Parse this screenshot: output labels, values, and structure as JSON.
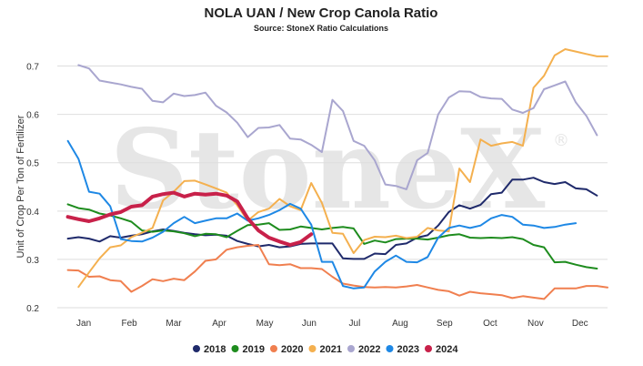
{
  "chart_data": {
    "type": "line",
    "title": "NOLA UAN / New Crop Canola Ratio",
    "subtitle": "Source: StoneX Ratio Calculations",
    "ylabel": "Unit of Crop Per Ton of Fertilizer",
    "xlabel": "",
    "watermark": "StoneX",
    "watermark_mark": "®",
    "ylim": [
      0.2,
      0.75
    ],
    "yticks": [
      0.2,
      0.3,
      0.4,
      0.5,
      0.6,
      0.7
    ],
    "ytick_labels": [
      "0.2",
      "0.3",
      "0.4",
      "0.5",
      "0.6",
      "0.7"
    ],
    "xlim": [
      0,
      52
    ],
    "xticks": [
      {
        "label": "Jan",
        "x": 2.5
      },
      {
        "label": "Feb",
        "x": 6.8
      },
      {
        "label": "Mar",
        "x": 11.0
      },
      {
        "label": "Apr",
        "x": 15.3
      },
      {
        "label": "May",
        "x": 19.6
      },
      {
        "label": "Jun",
        "x": 23.8
      },
      {
        "label": "Jul",
        "x": 28.1
      },
      {
        "label": "Aug",
        "x": 32.4
      },
      {
        "label": "Sep",
        "x": 36.6
      },
      {
        "label": "Oct",
        "x": 40.9
      },
      {
        "label": "Nov",
        "x": 45.2
      },
      {
        "label": "Dec",
        "x": 49.4
      }
    ],
    "grid": "horizontal",
    "legend_position": "bottom",
    "series": [
      {
        "name": "2018",
        "color": "#1f2a6b",
        "width": 2,
        "x": [
          1,
          2,
          3,
          4,
          5,
          6,
          7,
          8,
          9,
          10,
          11,
          12,
          13,
          14,
          15,
          16,
          17,
          18,
          19,
          20,
          21,
          22,
          23,
          24,
          25,
          26,
          27,
          28,
          29,
          30,
          31,
          32,
          33,
          34,
          35,
          36,
          37,
          38,
          39,
          40,
          41,
          42,
          43,
          44,
          45,
          46,
          47,
          48,
          49,
          50,
          51
        ],
        "y": [
          0.343,
          0.346,
          0.343,
          0.337,
          0.348,
          0.345,
          0.349,
          0.352,
          0.358,
          0.362,
          0.359,
          0.355,
          0.352,
          0.35,
          0.351,
          0.349,
          0.338,
          0.332,
          0.327,
          0.33,
          0.325,
          0.327,
          0.332,
          0.333,
          0.333,
          0.333,
          0.302,
          0.301,
          0.301,
          0.312,
          0.311,
          0.33,
          0.333,
          0.345,
          0.35,
          0.37,
          0.398,
          0.412,
          0.405,
          0.413,
          0.435,
          0.438,
          0.465,
          0.465,
          0.469,
          0.46,
          0.456,
          0.46,
          0.447,
          0.445,
          0.432
        ]
      },
      {
        "name": "2019",
        "color": "#1e8c1e",
        "width": 2,
        "x": [
          1,
          2,
          3,
          4,
          5,
          6,
          7,
          8,
          9,
          10,
          11,
          12,
          13,
          14,
          15,
          16,
          17,
          18,
          19,
          20,
          21,
          22,
          23,
          24,
          25,
          26,
          27,
          28,
          29,
          30,
          31,
          32,
          33,
          34,
          35,
          36,
          37,
          38,
          39,
          40,
          41,
          42,
          43,
          44,
          45,
          46,
          47,
          48,
          49,
          50,
          51
        ],
        "y": [
          0.414,
          0.406,
          0.403,
          0.395,
          0.391,
          0.385,
          0.378,
          0.36,
          0.357,
          0.36,
          0.358,
          0.354,
          0.348,
          0.353,
          0.352,
          0.346,
          0.359,
          0.371,
          0.372,
          0.375,
          0.361,
          0.362,
          0.368,
          0.365,
          0.362,
          0.365,
          0.367,
          0.364,
          0.332,
          0.339,
          0.335,
          0.342,
          0.343,
          0.343,
          0.341,
          0.345,
          0.35,
          0.352,
          0.345,
          0.344,
          0.345,
          0.344,
          0.346,
          0.342,
          0.33,
          0.325,
          0.294,
          0.295,
          0.289,
          0.284,
          0.281
        ]
      },
      {
        "name": "2020",
        "color": "#f07f4f",
        "width": 2,
        "x": [
          1,
          2,
          3,
          4,
          5,
          6,
          7,
          8,
          9,
          10,
          11,
          12,
          13,
          14,
          15,
          16,
          17,
          18,
          19,
          20,
          21,
          22,
          23,
          24,
          25,
          26,
          27,
          28,
          29,
          30,
          31,
          32,
          33,
          34,
          35,
          36,
          37,
          38,
          39,
          40,
          41,
          42,
          43,
          44,
          45,
          46,
          47,
          48,
          49,
          50,
          51,
          52
        ],
        "y": [
          0.278,
          0.277,
          0.264,
          0.265,
          0.257,
          0.255,
          0.233,
          0.245,
          0.259,
          0.255,
          0.26,
          0.257,
          0.275,
          0.297,
          0.3,
          0.32,
          0.325,
          0.328,
          0.33,
          0.29,
          0.288,
          0.29,
          0.282,
          0.282,
          0.28,
          0.264,
          0.25,
          0.246,
          0.243,
          0.242,
          0.243,
          0.242,
          0.244,
          0.247,
          0.242,
          0.237,
          0.234,
          0.225,
          0.233,
          0.23,
          0.228,
          0.226,
          0.22,
          0.224,
          0.221,
          0.218,
          0.24,
          0.24,
          0.24,
          0.245,
          0.245,
          0.242
        ]
      },
      {
        "name": "2021",
        "color": "#f4b04f",
        "width": 2,
        "x": [
          2,
          3,
          4,
          5,
          6,
          7,
          8,
          9,
          10,
          11,
          12,
          13,
          14,
          15,
          16,
          17,
          18,
          19,
          20,
          21,
          22,
          23,
          24,
          25,
          26,
          27,
          28,
          29,
          30,
          31,
          32,
          33,
          34,
          35,
          36,
          37,
          38,
          39,
          40,
          41,
          42,
          43,
          44,
          45,
          46,
          47,
          48,
          49,
          50,
          51,
          52
        ],
        "y": [
          0.243,
          0.273,
          0.302,
          0.325,
          0.329,
          0.346,
          0.355,
          0.365,
          0.422,
          0.44,
          0.462,
          0.463,
          0.455,
          0.447,
          0.438,
          0.412,
          0.38,
          0.398,
          0.405,
          0.425,
          0.41,
          0.402,
          0.458,
          0.417,
          0.355,
          0.353,
          0.313,
          0.34,
          0.347,
          0.346,
          0.349,
          0.344,
          0.347,
          0.365,
          0.36,
          0.358,
          0.488,
          0.46,
          0.548,
          0.535,
          0.54,
          0.543,
          0.535,
          0.655,
          0.68,
          0.722,
          0.735,
          0.73,
          0.725,
          0.72,
          0.72
        ]
      },
      {
        "name": "2022",
        "color": "#a9a6cf",
        "width": 2,
        "x": [
          2,
          3,
          4,
          5,
          6,
          7,
          8,
          9,
          10,
          11,
          12,
          13,
          14,
          15,
          16,
          17,
          18,
          19,
          20,
          21,
          22,
          23,
          24,
          25,
          26,
          27,
          28,
          29,
          30,
          31,
          32,
          33,
          34,
          35,
          36,
          37,
          38,
          39,
          40,
          41,
          42,
          43,
          44,
          45,
          46,
          47,
          48,
          49,
          50,
          51
        ],
        "y": [
          0.702,
          0.695,
          0.67,
          0.666,
          0.662,
          0.657,
          0.653,
          0.628,
          0.625,
          0.643,
          0.638,
          0.64,
          0.645,
          0.618,
          0.604,
          0.583,
          0.553,
          0.572,
          0.573,
          0.578,
          0.55,
          0.548,
          0.537,
          0.522,
          0.63,
          0.607,
          0.545,
          0.535,
          0.505,
          0.455,
          0.452,
          0.445,
          0.505,
          0.52,
          0.6,
          0.635,
          0.648,
          0.647,
          0.636,
          0.633,
          0.632,
          0.61,
          0.603,
          0.613,
          0.652,
          0.66,
          0.668,
          0.625,
          0.597,
          0.557
        ]
      },
      {
        "name": "2023",
        "color": "#1e88e5",
        "width": 2,
        "x": [
          1,
          2,
          3,
          4,
          5,
          6,
          7,
          8,
          9,
          10,
          11,
          12,
          13,
          14,
          15,
          16,
          17,
          18,
          19,
          20,
          21,
          22,
          23,
          24,
          25,
          26,
          27,
          28,
          29,
          30,
          31,
          32,
          33,
          34,
          35,
          36,
          37,
          38,
          39,
          40,
          41,
          42,
          43,
          44,
          45,
          46,
          47,
          48,
          49
        ],
        "y": [
          0.545,
          0.508,
          0.44,
          0.436,
          0.41,
          0.342,
          0.338,
          0.337,
          0.345,
          0.357,
          0.375,
          0.388,
          0.375,
          0.38,
          0.385,
          0.385,
          0.395,
          0.38,
          0.385,
          0.392,
          0.402,
          0.415,
          0.405,
          0.372,
          0.295,
          0.295,
          0.245,
          0.24,
          0.242,
          0.275,
          0.295,
          0.308,
          0.295,
          0.294,
          0.305,
          0.345,
          0.365,
          0.37,
          0.365,
          0.37,
          0.385,
          0.392,
          0.388,
          0.372,
          0.37,
          0.365,
          0.367,
          0.372,
          0.375
        ]
      },
      {
        "name": "2024",
        "color": "#c8214a",
        "width": 4,
        "x": [
          1,
          2,
          3,
          4,
          5,
          6,
          7,
          8,
          9,
          10,
          11,
          12,
          13,
          14,
          15,
          16,
          17,
          18,
          19,
          20,
          21,
          22,
          23,
          24
        ],
        "y": [
          0.388,
          0.383,
          0.379,
          0.385,
          0.393,
          0.398,
          0.409,
          0.412,
          0.43,
          0.435,
          0.438,
          0.43,
          0.436,
          0.434,
          0.436,
          0.432,
          0.42,
          0.385,
          0.36,
          0.345,
          0.337,
          0.33,
          0.336,
          0.352
        ]
      }
    ]
  }
}
